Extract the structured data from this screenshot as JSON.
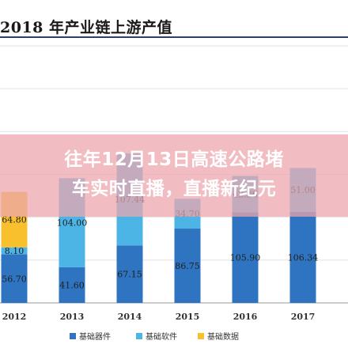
{
  "page": {
    "title": "2018 年产业链上游产值"
  },
  "headline": {
    "line1": "往年12月13日高速公路堵",
    "line2": "车实时直播，直播新纪元"
  },
  "chart_data": {
    "type": "bar",
    "stacked": true,
    "title": "2018 年产业链上游产值",
    "categories": [
      "2012",
      "2013",
      "2014",
      "2015",
      "2016",
      "2017"
    ],
    "series": [
      {
        "name": "基础器件",
        "color": "#2e74c0",
        "values": [
          56.7,
          41.6,
          67.15,
          86.75,
          105.9,
          106.34
        ]
      },
      {
        "name": "基础软件",
        "color": "#4db4e6",
        "values": [
          8.1,
          104.0,
          107.44,
          34.7,
          42.36,
          51.0
        ]
      },
      {
        "name": "基础数据",
        "color": "#f7c02c",
        "values": [
          64.8,
          0,
          0,
          0,
          0,
          0
        ]
      }
    ],
    "ylim": [
      0,
      300
    ],
    "grid": true,
    "legend": "bottom"
  }
}
